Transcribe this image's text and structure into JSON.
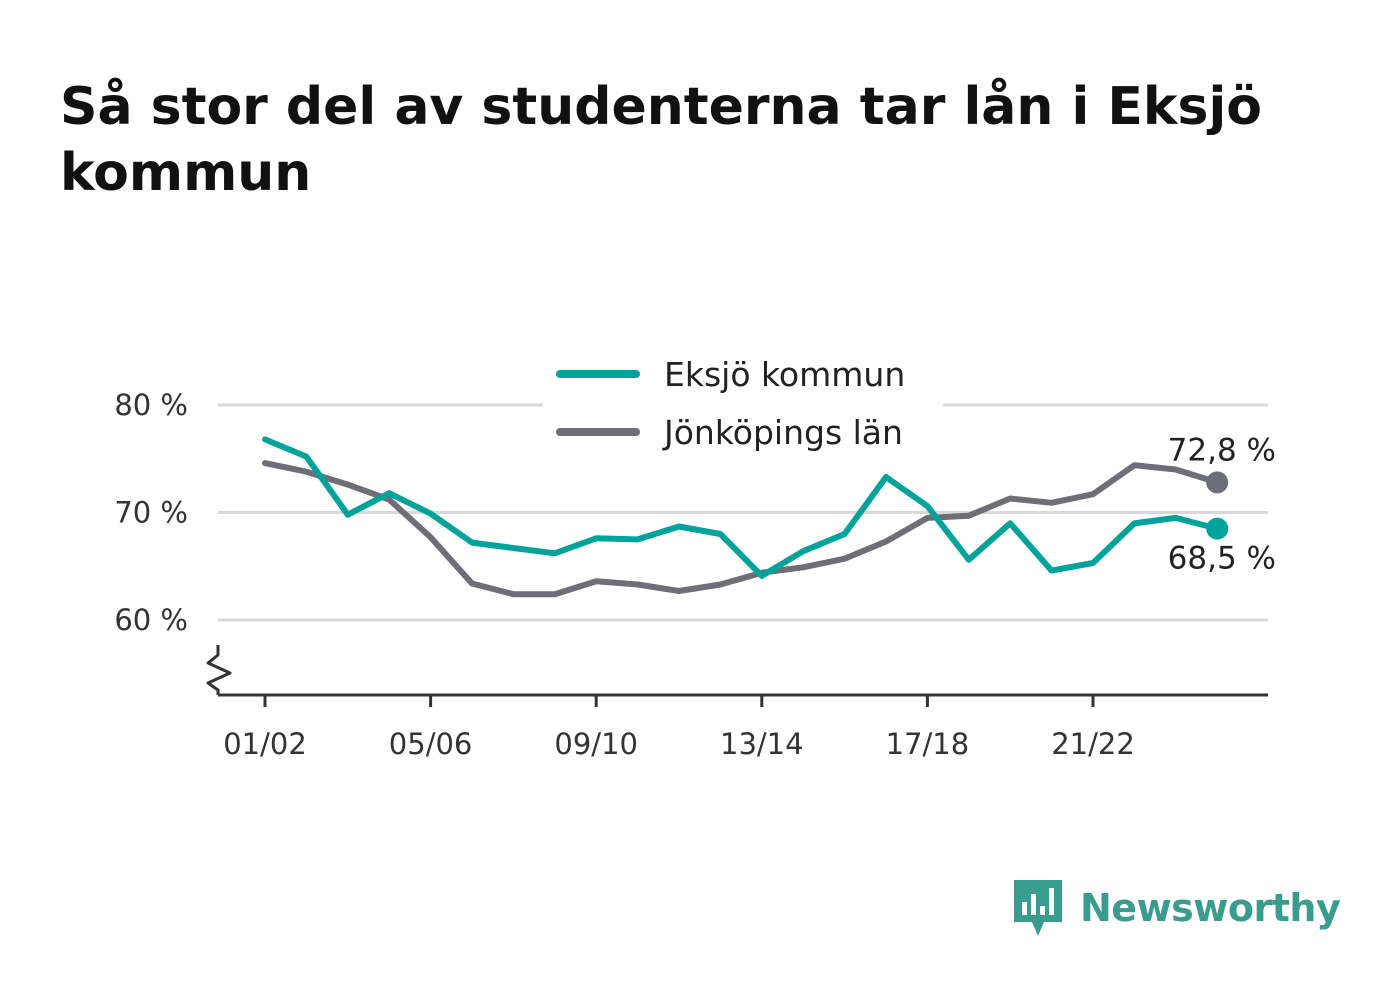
{
  "title": "Så stor del av studenterna tar lån i Eksjö kommun",
  "brand": {
    "name": "Newsworthy",
    "icon": "newsworthy-logo-icon",
    "color": "#3a9c8e"
  },
  "chart_data": {
    "type": "line",
    "x": [
      "01/02",
      "02/03",
      "03/04",
      "04/05",
      "05/06",
      "06/07",
      "07/08",
      "08/09",
      "09/10",
      "10/11",
      "11/12",
      "12/13",
      "13/14",
      "14/15",
      "15/16",
      "16/17",
      "17/18",
      "18/19",
      "19/20",
      "20/21",
      "21/22",
      "22/23",
      "23/24",
      "24/25"
    ],
    "x_tick_labels": [
      "01/02",
      "05/06",
      "09/10",
      "13/14",
      "17/18",
      "21/22"
    ],
    "series": [
      {
        "name": "Eksjö kommun",
        "color": "#00a39a",
        "values": [
          76.8,
          75.2,
          69.8,
          71.8,
          69.9,
          67.2,
          66.7,
          66.2,
          67.6,
          67.5,
          68.7,
          68.0,
          64.1,
          66.4,
          68.0,
          73.3,
          70.6,
          65.6,
          69.0,
          64.6,
          65.3,
          69.0,
          69.5,
          68.5
        ],
        "end_label": "68,5 %"
      },
      {
        "name": "Jönköpings län",
        "color": "#6e6e78",
        "values": [
          74.6,
          73.8,
          72.6,
          71.2,
          67.7,
          63.4,
          62.4,
          62.4,
          63.6,
          63.3,
          62.7,
          63.3,
          64.4,
          64.9,
          65.7,
          67.3,
          69.5,
          69.7,
          71.3,
          70.9,
          71.7,
          74.4,
          74.0,
          72.8
        ],
        "end_label": "72,8 %"
      }
    ],
    "y_ticks": [
      60,
      70,
      80
    ],
    "y_tick_labels": [
      "60 %",
      "70 %",
      "80 %"
    ],
    "ylim": [
      53,
      80
    ],
    "axis_break": true,
    "grid": true,
    "legend_position": "top-center",
    "xlabel": "",
    "ylabel": ""
  }
}
